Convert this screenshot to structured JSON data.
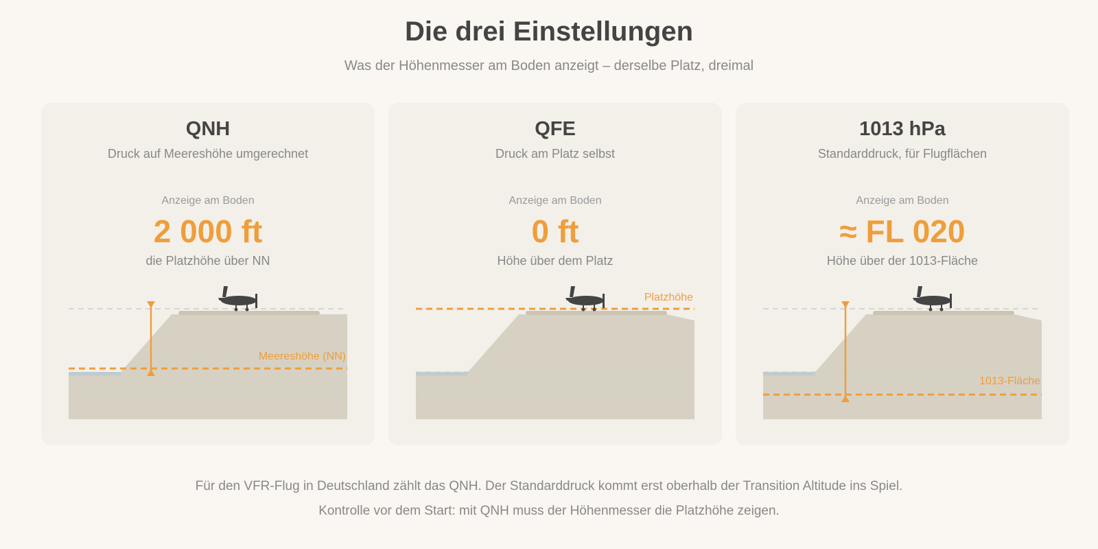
{
  "header": {
    "title": "Die drei Einstellungen",
    "subtitle": "Was der Höhenmesser am Boden anzeigt – derselbe Platz, dreimal"
  },
  "cards": [
    {
      "title": "QNH",
      "subtitle": "Druck auf Meereshöhe umgerechnet",
      "reading_label": "Anzeige am Boden",
      "reading_value": "2 000 ft",
      "reading_desc": "die Platzhöhe über NN",
      "reference_label": "Meereshöhe (NN)"
    },
    {
      "title": "QFE",
      "subtitle": "Druck am Platz selbst",
      "reading_label": "Anzeige am Boden",
      "reading_value": "0 ft",
      "reading_desc": "Höhe über dem Platz",
      "reference_label": "Platzhöhe"
    },
    {
      "title": "1013 hPa",
      "subtitle": "Standarddruck, für Flugflächen",
      "reading_label": "Anzeige am Boden",
      "reading_value": "≈ FL 020",
      "reading_desc": "Höhe über der 1013-Fläche",
      "reference_label": "1013-Fläche"
    }
  ],
  "footer": {
    "line1": "Für den VFR-Flug in Deutschland zählt das QNH. Der Standarddruck kommt erst oberhalb der Transition Altitude ins Spiel.",
    "line2": "Kontrolle vor dem Start: mit QNH muss der Höhenmesser die Platzhöhe zeigen."
  },
  "colors": {
    "accent": "#ef9e3b",
    "terrain": "#d7d1c3",
    "runway": "#cbc4b2",
    "water": "#bfcad1",
    "card_bg": "#f3f0ea",
    "page_bg": "#faf7f2",
    "text_dark": "#444444",
    "text_muted": "#888888"
  }
}
